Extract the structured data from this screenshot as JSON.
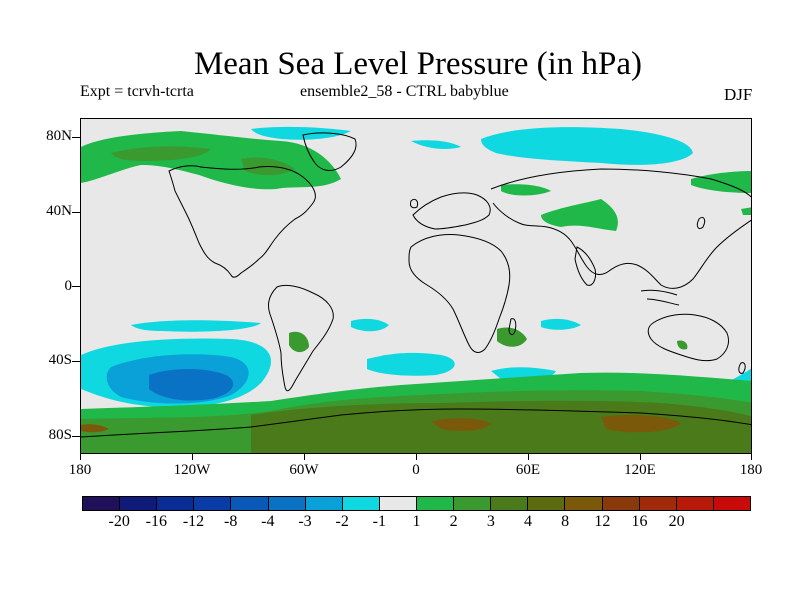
{
  "title": "Mean Sea Level Pressure (in hPa)",
  "subtitle_left": "Expt = tcrvh-tcrta",
  "subtitle_center": "ensemble2_58 - CTRL babyblue",
  "season": "DJF",
  "y_axis_labels": [
    "80N",
    "40N",
    "0",
    "40S",
    "80S"
  ],
  "x_axis_labels": [
    "180",
    "120W",
    "60W",
    "0",
    "60E",
    "120E",
    "180"
  ],
  "colorbar": {
    "colors": [
      "#20105a",
      "#101a78",
      "#0a2c96",
      "#0a3ca8",
      "#0a58b8",
      "#0a72c4",
      "#0aa0d8",
      "#10d8e0",
      "#e8e8e8",
      "#20b848",
      "#3a9a30",
      "#4a7a1a",
      "#5c6a10",
      "#7a5a0a",
      "#8a3a0a",
      "#a02a0a",
      "#b81a0a",
      "#c80a0a"
    ],
    "labels": [
      "-20",
      "-16",
      "-12",
      "-8",
      "-4",
      "-3",
      "-2",
      "-1",
      "1",
      "2",
      "3",
      "4",
      "8",
      "12",
      "16",
      "20"
    ]
  },
  "regions": [
    {
      "name": "arctic-low",
      "color": "#10d8e0"
    },
    {
      "name": "south-pacific-low",
      "color": "#0aa0d8"
    },
    {
      "name": "south-pacific-core",
      "color": "#0a72c4"
    },
    {
      "name": "southern-ocean-high",
      "color": "#20b848"
    },
    {
      "name": "antarctic-high",
      "color": "#3a9a30"
    },
    {
      "name": "antarctic-core",
      "color": "#7a5a0a"
    }
  ]
}
